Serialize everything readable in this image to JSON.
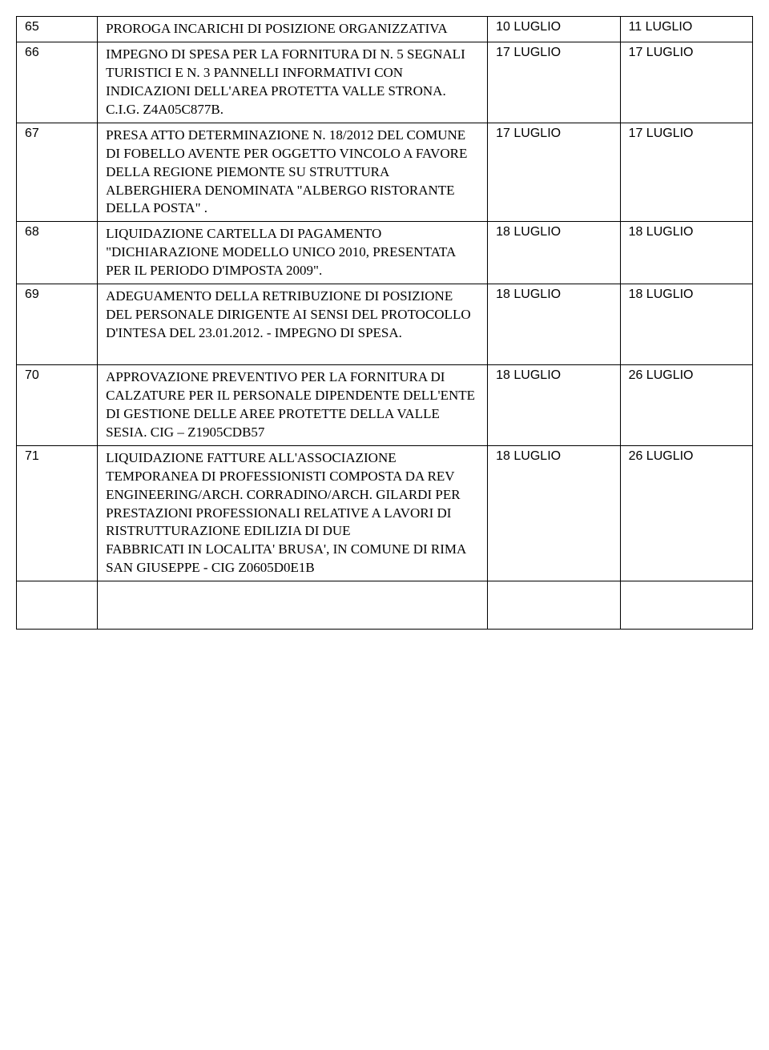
{
  "rows": [
    {
      "num": "65",
      "desc": "PROROGA INCARICHI DI POSIZIONE ORGANIZZATIVA",
      "date1": "10 LUGLIO",
      "date2": "11 LUGLIO"
    },
    {
      "num": "66",
      "desc": "IMPEGNO DI SPESA PER LA FORNITURA DI N. 5 SEGNALI TURISTICI E N. 3 PANNELLI INFORMATIVI CON INDICAZIONI DELL'AREA PROTETTA VALLE STRONA. C.I.G. Z4A05C877B.",
      "date1": "17 LUGLIO",
      "date2": "17 LUGLIO"
    },
    {
      "num": "67",
      "desc": "PRESA ATTO DETERMINAZIONE N. 18/2012 DEL COMUNE DI FOBELLO AVENTE PER OGGETTO VINCOLO A FAVORE DELLA REGIONE PIEMONTE SU STRUTTURA ALBERGHIERA DENOMINATA \"ALBERGO RISTORANTE DELLA POSTA\" .",
      "date1": "17 LUGLIO",
      "date2": "17 LUGLIO"
    },
    {
      "num": "68",
      "desc": "LIQUIDAZIONE CARTELLA DI PAGAMENTO \"DICHIARAZIONE MODELLO UNICO 2010, PRESENTATA PER IL PERIODO D'IMPOSTA 2009\".",
      "date1": "18 LUGLIO",
      "date2": "18 LUGLIO"
    },
    {
      "num": "69",
      "desc": "ADEGUAMENTO DELLA RETRIBUZIONE DI POSIZIONE DEL PERSONALE DIRIGENTE AI SENSI DEL PROTOCOLLO D'INTESA DEL 23.01.2012. - IMPEGNO DI SPESA.\n\n",
      "date1": "18 LUGLIO",
      "date2": "18 LUGLIO"
    },
    {
      "num": "70",
      "desc": "APPROVAZIONE PREVENTIVO PER LA FORNITURA DI CALZATURE PER  IL  PERSONALE  DIPENDENTE DELL'ENTE DI GESTIONE DELLE  AREE  PROTETTE  DELLA  VALLE  SESIA. CIG – Z1905CDB57",
      "date1": "18 LUGLIO",
      "date2": "26 LUGLIO"
    },
    {
      "num": "71",
      "desc": "LIQUIDAZIONE FATTURE ALL'ASSOCIAZIONE TEMPORANEA DI PROFESSIONISTI COMPOSTA DA REV ENGINEERING/ARCH. CORRADINO/ARCH. GILARDI PER PRESTAZIONI PROFESSIONALI RELATIVE A LAVORI DI RISTRUTTURAZIONE EDILIZIA DI DUE\nFABBRICATI IN LOCALITA' BRUSA', IN COMUNE DI RIMA SAN GIUSEPPE - CIG Z0605D0E1B\n",
      "date1": "18 LUGLIO",
      "date2": "26 LUGLIO"
    }
  ]
}
